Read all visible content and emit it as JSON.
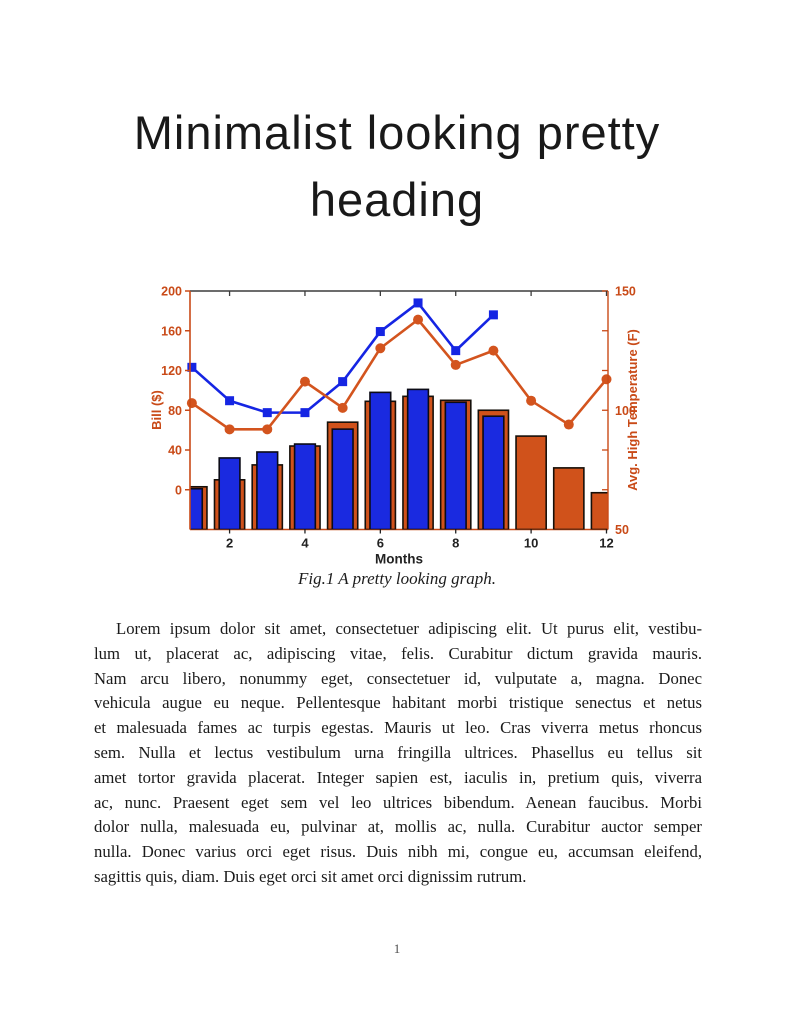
{
  "page": {
    "heading": {
      "line1": "Minimalist looking pretty",
      "line2": "heading"
    },
    "figure_caption": "Fig.1 A pretty looking graph.",
    "page_number": "1",
    "body_paragraph_lines": [
      "Lorem ipsum dolor sit amet, consectetuer adipiscing elit. Ut purus elit, vestibu-",
      "lum ut, placerat ac, adipiscing vitae, felis. Curabitur dictum gravida mauris.",
      "Nam arcu libero, nonummy eget, consectetuer id, vulputate a, magna. Donec",
      "vehicula augue eu neque. Pellentesque habitant morbi tristique senectus et netus",
      "et malesuada fames ac turpis egestas. Mauris ut leo. Cras viverra metus rhoncus",
      "sem. Nulla et lectus vestibulum urna fringilla ultrices. Phasellus eu tellus sit",
      "amet tortor gravida placerat. Integer sapien est, iaculis in, pretium quis, viverra",
      "ac, nunc. Praesent eget sem vel leo ultrices bibendum. Aenean faucibus. Morbi",
      "dolor nulla, malesuada eu, pulvinar at, mollis ac, nulla. Curabitur auctor semper",
      "nulla. Donec varius orci eget risus. Duis nibh mi, congue eu, accumsan eleifend,",
      "sagittis quis, diam. Duis eget orci sit amet orci dignissim rutrum."
    ]
  },
  "chart_data": {
    "type": "combo-bar-line",
    "title": "",
    "xlabel": "Months",
    "ylabel_left": "Bill ($)",
    "ylabel_right": "Avg. High Temperature (F)",
    "months": [
      1,
      2,
      3,
      4,
      5,
      6,
      7,
      8,
      9,
      10,
      11,
      12
    ],
    "xticks": [
      2,
      4,
      6,
      8,
      10,
      12
    ],
    "xlim": [
      0.95,
      12.04
    ],
    "ylim_left": [
      -40,
      200
    ],
    "yticks_left": [
      0,
      40,
      80,
      120,
      160,
      200
    ],
    "ylim_right": [
      50,
      150
    ],
    "yticks_right": [
      50,
      100,
      150
    ],
    "grid": false,
    "legend": false,
    "bar_baseline": "axis-bottom",
    "series": [
      {
        "name": "bill-bars-orange",
        "type": "bar",
        "axis": "left",
        "color": "#d0521b",
        "edge_color": "#16100a",
        "bar_width_months": 0.8,
        "values": [
          3,
          10,
          25,
          44,
          68,
          89,
          94,
          90,
          80,
          54,
          22,
          -3
        ]
      },
      {
        "name": "bill-bars-blue",
        "type": "bar",
        "axis": "left",
        "color": "#1a2ae0",
        "edge_color": "#0b0b16",
        "bar_width_months": 0.55,
        "values": [
          1,
          32,
          38,
          46,
          61,
          98,
          101,
          88,
          74
        ]
      },
      {
        "name": "temperature-line-blue",
        "type": "line",
        "axis": "right",
        "color": "#1525e3",
        "marker": "square",
        "marker_size": 9,
        "values": [
          118,
          104,
          99,
          99,
          112,
          133,
          145,
          125,
          140
        ]
      },
      {
        "name": "temperature-line-orange",
        "type": "line",
        "axis": "right",
        "color": "#d3541e",
        "marker": "circle",
        "marker_size": 10,
        "values": [
          103,
          92,
          92,
          112,
          101,
          126,
          138,
          119,
          125,
          104,
          94,
          113
        ]
      }
    ],
    "axis_colors": {
      "y_axes": "#c94a17",
      "x_labels": "#222222",
      "top_spine": "#3c3c3c"
    }
  }
}
